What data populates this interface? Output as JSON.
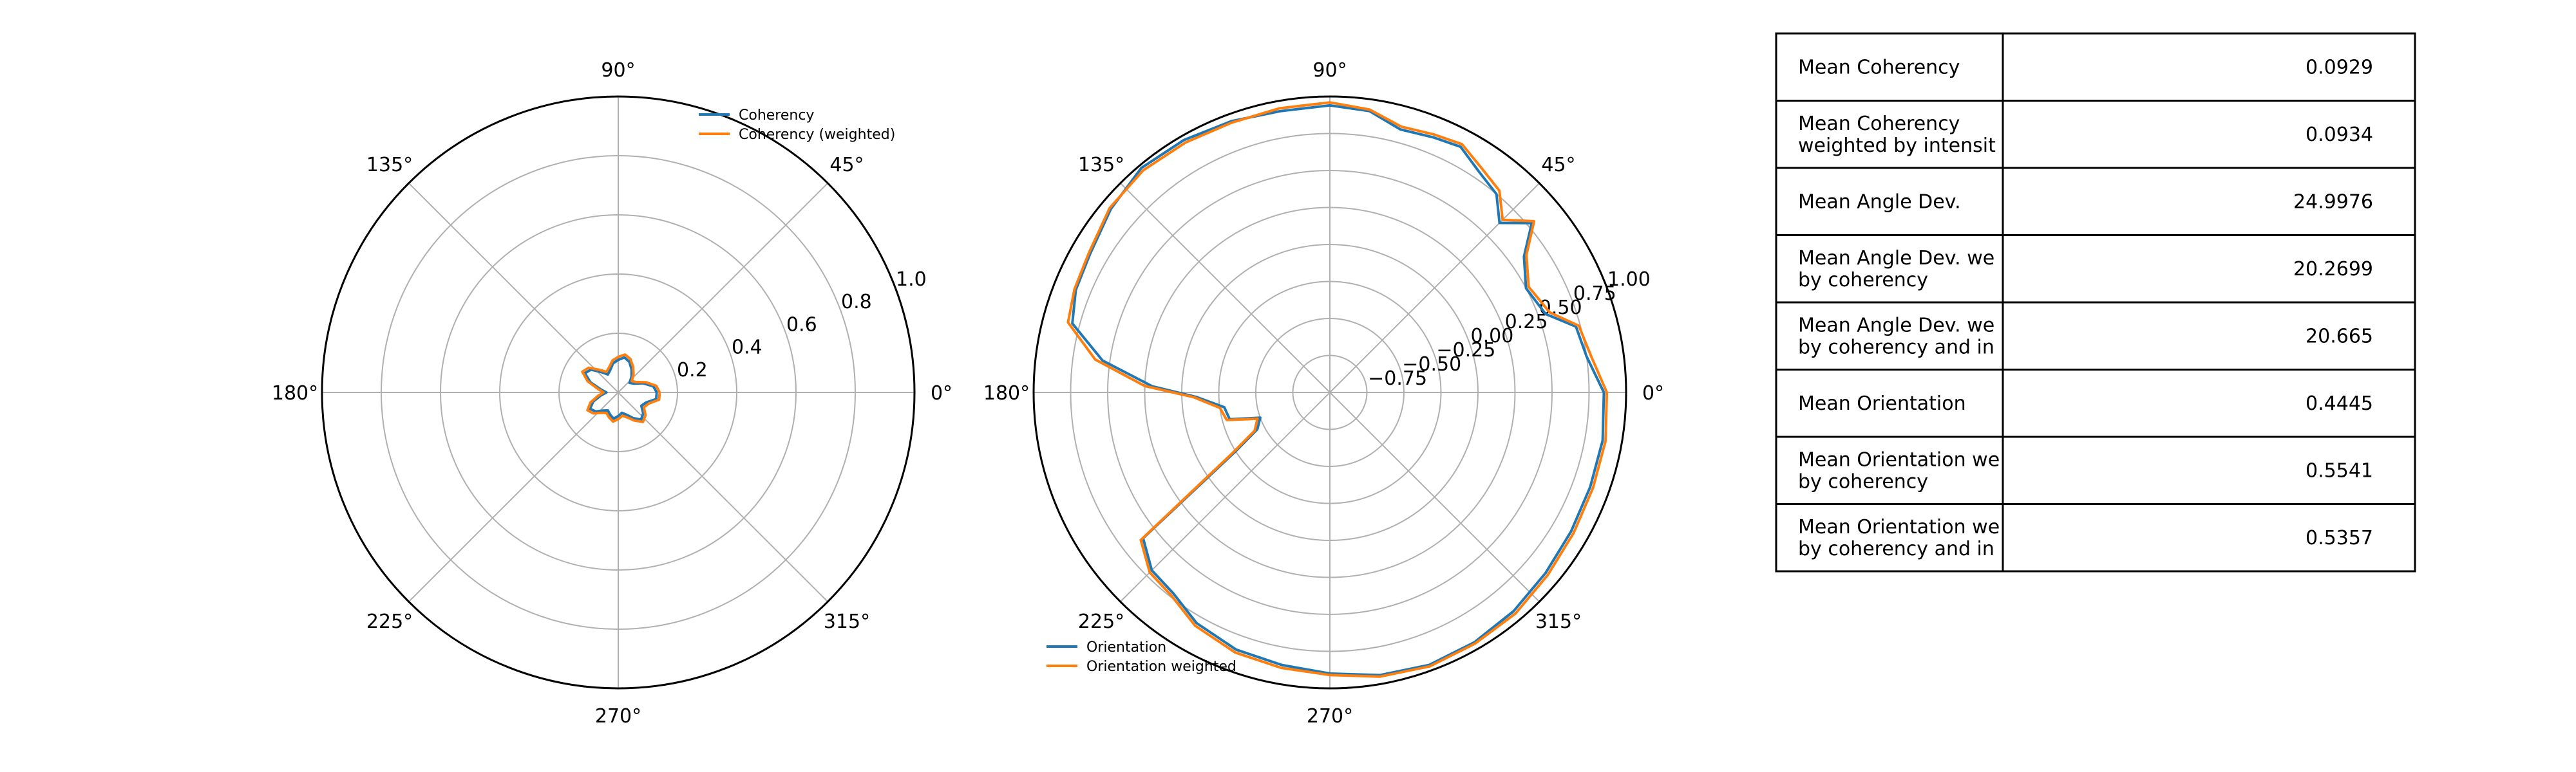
{
  "chart_data": [
    {
      "type": "line",
      "polar": true,
      "angle_unit": "degrees",
      "angle_ticks": [
        "0°",
        "45°",
        "90°",
        "135°",
        "180°",
        "225°",
        "270°",
        "315°"
      ],
      "r_ticks": [
        "0.2",
        "0.4",
        "0.6",
        "0.8",
        "1.0"
      ],
      "rlim": [
        0,
        1.0
      ],
      "grid": true,
      "legend_position": "top-right",
      "series": [
        {
          "name": "Coherency",
          "color": "#1f77b4",
          "theta": [
            0,
            10,
            20,
            30,
            40,
            50,
            60,
            70,
            80,
            90,
            100,
            110,
            120,
            130,
            140,
            150,
            160,
            170,
            180,
            190,
            200,
            210,
            220,
            230,
            240,
            250,
            260,
            270,
            280,
            290,
            300,
            310,
            320,
            330,
            340,
            350
          ],
          "r": [
            0.13,
            0.12,
            0.09,
            0.06,
            0.05,
            0.07,
            0.09,
            0.11,
            0.12,
            0.11,
            0.1,
            0.08,
            0.07,
            0.09,
            0.12,
            0.13,
            0.1,
            0.06,
            0.04,
            0.06,
            0.09,
            0.11,
            0.1,
            0.08,
            0.07,
            0.08,
            0.09,
            0.08,
            0.07,
            0.08,
            0.1,
            0.12,
            0.11,
            0.09,
            0.1,
            0.13
          ]
        },
        {
          "name": "Coherency (weighted)",
          "color": "#ff7f0e",
          "theta": [
            0,
            10,
            20,
            30,
            40,
            50,
            60,
            70,
            80,
            90,
            100,
            110,
            120,
            130,
            140,
            150,
            160,
            170,
            180,
            190,
            200,
            210,
            220,
            230,
            240,
            250,
            260,
            270,
            280,
            290,
            300,
            310,
            320,
            330,
            340,
            350
          ],
          "r": [
            0.14,
            0.13,
            0.1,
            0.07,
            0.06,
            0.08,
            0.1,
            0.12,
            0.13,
            0.12,
            0.11,
            0.09,
            0.08,
            0.1,
            0.13,
            0.14,
            0.11,
            0.07,
            0.05,
            0.07,
            0.1,
            0.12,
            0.11,
            0.09,
            0.08,
            0.09,
            0.1,
            0.09,
            0.08,
            0.09,
            0.11,
            0.13,
            0.12,
            0.1,
            0.11,
            0.14
          ]
        }
      ]
    },
    {
      "type": "line",
      "polar": true,
      "angle_unit": "degrees",
      "angle_ticks": [
        "0°",
        "45°",
        "90°",
        "135°",
        "180°",
        "225°",
        "270°",
        "315°"
      ],
      "r_ticks": [
        "−0.75",
        "−0.50",
        "−0.25",
        "0.00",
        "0.25",
        "0.50",
        "0.75",
        "1.00"
      ],
      "rlim": [
        -1.0,
        1.0
      ],
      "grid": true,
      "legend_position": "bottom-left",
      "series": [
        {
          "name": "Orientation",
          "color": "#1f77b4",
          "theta": [
            0,
            8,
            15,
            20,
            28,
            35,
            40,
            45,
            50,
            56,
            62,
            68,
            75,
            82,
            90,
            100,
            110,
            120,
            130,
            140,
            150,
            158,
            165,
            172,
            178,
            182,
            188,
            195,
            200,
            207,
            212,
            218,
            225,
            232,
            240,
            250,
            260,
            270,
            280,
            290,
            300,
            310,
            320,
            330,
            340,
            350
          ],
          "r": [
            0.85,
            0.75,
            0.72,
            0.55,
            0.5,
            0.6,
            0.78,
            0.62,
            0.75,
            0.8,
            0.88,
            0.86,
            0.84,
            0.92,
            0.94,
            0.93,
            0.95,
            0.97,
            0.98,
            0.93,
            0.87,
            0.85,
            0.8,
            0.55,
            0.2,
            -0.1,
            -0.28,
            -0.3,
            -0.5,
            -0.45,
            -0.25,
            0.6,
            0.7,
            0.72,
            0.8,
            0.85,
            0.87,
            0.9,
            0.94,
            0.96,
            0.95,
            0.93,
            0.9,
            0.88,
            0.87,
            0.87
          ]
        },
        {
          "name": "Orientation weighted",
          "color": "#ff7f0e",
          "theta": [
            0,
            8,
            15,
            20,
            28,
            35,
            40,
            45,
            50,
            56,
            62,
            68,
            75,
            82,
            90,
            100,
            110,
            120,
            130,
            140,
            150,
            158,
            165,
            172,
            178,
            182,
            188,
            195,
            200,
            207,
            212,
            218,
            225,
            232,
            240,
            250,
            260,
            270,
            280,
            290,
            300,
            310,
            320,
            330,
            340,
            350
          ],
          "r": [
            0.87,
            0.78,
            0.74,
            0.58,
            0.52,
            0.62,
            0.8,
            0.65,
            0.78,
            0.83,
            0.9,
            0.88,
            0.86,
            0.93,
            0.96,
            0.95,
            0.94,
            0.95,
            0.96,
            0.94,
            0.88,
            0.86,
            0.83,
            0.6,
            0.25,
            -0.08,
            -0.25,
            -0.28,
            -0.48,
            -0.43,
            -0.22,
            0.62,
            0.72,
            0.74,
            0.82,
            0.87,
            0.89,
            0.91,
            0.95,
            0.97,
            0.96,
            0.95,
            0.92,
            0.9,
            0.89,
            0.89
          ]
        }
      ]
    },
    {
      "type": "table",
      "rows": [
        [
          "Mean Coherency",
          "0.0929"
        ],
        [
          "Mean Coherency\nweighted by intensit",
          "0.0934"
        ],
        [
          "Mean Angle Dev.",
          "24.9976"
        ],
        [
          "Mean Angle Dev. we\nby coherency",
          "20.2699"
        ],
        [
          "Mean Angle Dev. we\nby coherency and in",
          "20.665"
        ],
        [
          "Mean Orientation",
          "0.4445"
        ],
        [
          "Mean Orientation we\nby coherency",
          "0.5541"
        ],
        [
          "Mean Orientation we\nby coherency and in",
          "0.5357"
        ]
      ]
    }
  ]
}
